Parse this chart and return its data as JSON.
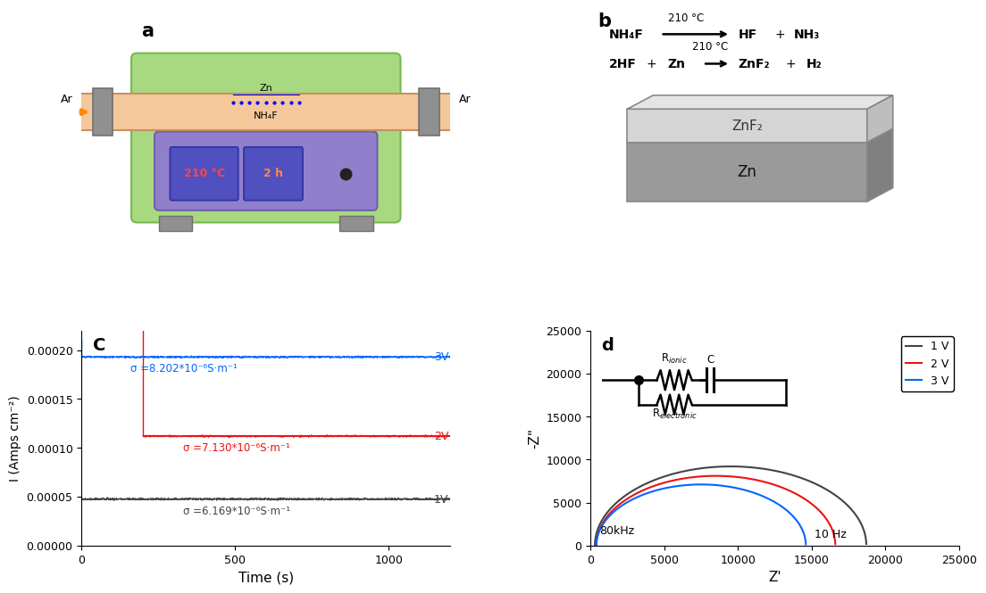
{
  "panel_c": {
    "xlabel": "Time (s)",
    "ylabel": "I (Amps cm⁻²)",
    "xlim": [
      0,
      1200
    ],
    "ylim": [
      0,
      0.00022
    ],
    "yticks": [
      0.0,
      5e-05,
      0.0001,
      0.00015,
      0.0002
    ],
    "xticks": [
      0,
      500,
      1000
    ],
    "line_3V_color": "#0066FF",
    "line_3V_level": 0.000193,
    "line_2V_color": "#EE1111",
    "line_2V_level": 0.000112,
    "line_1V_color": "#444444",
    "line_1V_level": 4.75e-05,
    "sigma_3V": "σ =8.202*10⁻⁶S·m⁻¹",
    "sigma_2V": "σ =7.130*10⁻⁶S·m⁻¹",
    "sigma_1V": "σ =6.169*10⁻⁶S·m⁻¹",
    "label_3V": "3V",
    "label_2V": "2V",
    "label_1V": "1V"
  },
  "panel_d": {
    "xlabel": "Z'",
    "ylabel": "-Z\"",
    "xlim": [
      0,
      25000
    ],
    "ylim": [
      0,
      25000
    ],
    "xticks": [
      0,
      5000,
      10000,
      15000,
      20000,
      25000
    ],
    "yticks": [
      0,
      5000,
      10000,
      15000,
      20000,
      25000
    ],
    "arc_1V_color": "#444444",
    "arc_2V_color": "#EE1111",
    "arc_3V_color": "#0066FF",
    "legend_1V": "1 V",
    "legend_2V": "2 V",
    "legend_3V": "3 V",
    "label_80kHz": "80kHz",
    "label_10Hz": "10 Hz"
  },
  "background_color": "#FFFFFF"
}
